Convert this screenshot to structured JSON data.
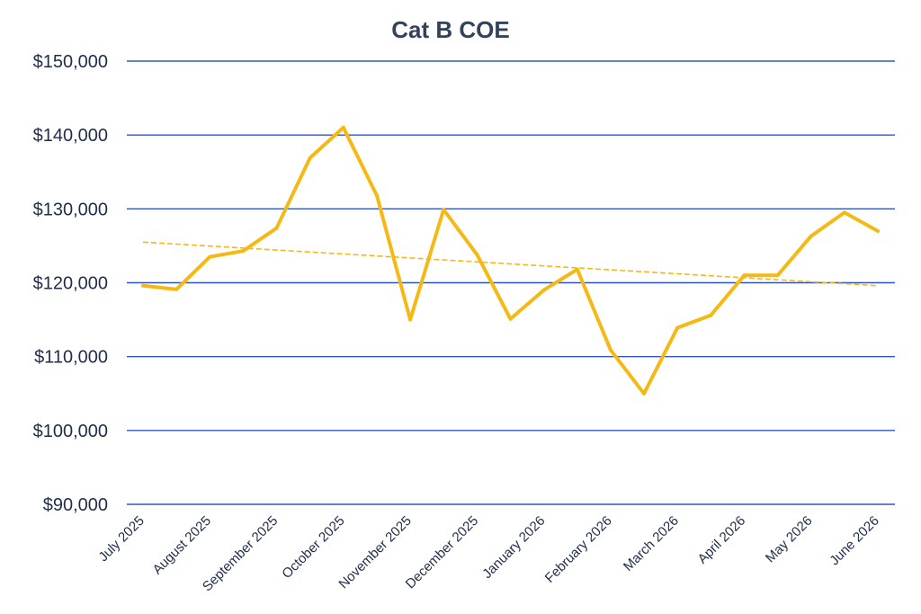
{
  "chart_data": {
    "type": "line",
    "title": "Cat B COE",
    "xlabel": "",
    "ylabel": "",
    "ylim": [
      90000,
      150000
    ],
    "y_ticks": [
      "$90,000",
      "$100,000",
      "$110,000",
      "$120,000",
      "$130,000",
      "$140,000",
      "$150,000"
    ],
    "y_tick_values": [
      90000,
      100000,
      110000,
      120000,
      130000,
      140000,
      150000
    ],
    "x_tick_labels": [
      "July 2025",
      "August 2025",
      "September 2025",
      "October 2025",
      "November 2025",
      "December 2025",
      "January 2026",
      "February 2026",
      "March 2026",
      "April 2026",
      "May 2026",
      "June 2026"
    ],
    "grid": true,
    "legend": "none",
    "series": [
      {
        "values": [
          119600,
          119100,
          123500,
          124300,
          127400,
          136900,
          141000,
          131800,
          115000,
          129900,
          123800,
          115100,
          119000,
          121800,
          110900,
          105000,
          113900,
          115600,
          121000,
          121000,
          126300,
          129500,
          127000
        ],
        "color": "#f5b915"
      }
    ],
    "trendline": {
      "type": "linear",
      "start": 125500,
      "end": 119600,
      "color": "#f5b915",
      "style": "dashed"
    }
  }
}
